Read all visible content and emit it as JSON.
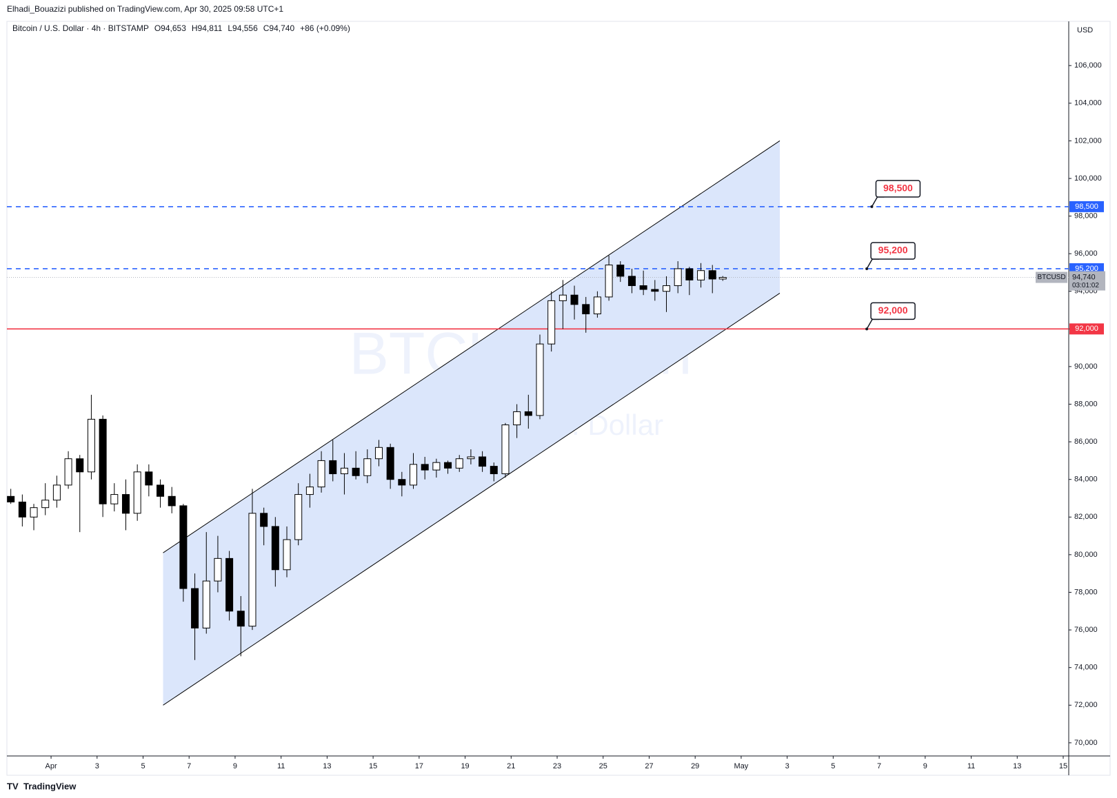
{
  "header": {
    "publisher": "Elhadi_Bouazizi published on TradingView.com, Apr 30, 2025 09:58 UTC+1",
    "brand": "TradingView"
  },
  "chart_data": {
    "type": "candlestick",
    "legend": {
      "symbol": "Bitcoin / U.S. Dollar · 4h · BITSTAMP",
      "fields": [
        {
          "key": "O",
          "value": "94,653"
        },
        {
          "key": "H",
          "value": "94,811"
        },
        {
          "key": "L",
          "value": "94,556"
        },
        {
          "key": "C",
          "value": "94,740"
        }
      ],
      "change": "+86 (+0.09%)"
    },
    "watermark": {
      "title": "BTCUSD, 4h",
      "subtitle": "Bitcoin / U.S. Dollar"
    },
    "currency": "USD",
    "up_color": "#ffffff",
    "down_color": "#000000",
    "wick_color": "#000000",
    "x": [
      -0.75,
      -0.25,
      0.25,
      0.75,
      1.25,
      1.75,
      2.25,
      2.75,
      3.25,
      3.75,
      4.25,
      4.75,
      5.25,
      5.75,
      6.25,
      6.75,
      7.25,
      7.75,
      8.25,
      8.75,
      9.25,
      9.75,
      10.25,
      10.75,
      11.25,
      11.75,
      12.25,
      12.75,
      13.25,
      13.75,
      14.25,
      14.75,
      15.25,
      15.75,
      16.25,
      16.75,
      17.25,
      17.75,
      18.25,
      18.75,
      19.25,
      19.75,
      20.25,
      20.75,
      21.25,
      21.75,
      22.25,
      22.75,
      23.25,
      23.75,
      24.25,
      24.75,
      25.25,
      25.75,
      26.25,
      26.75,
      27.25,
      27.75,
      28.25,
      28.75,
      29.25,
      29.75,
      30.2
    ],
    "open": [
      83100,
      82800,
      82000,
      82500,
      82900,
      83700,
      85100,
      84400,
      87200,
      82700,
      83200,
      82200,
      84400,
      83700,
      83100,
      82600,
      78200,
      76100,
      78600,
      79800,
      77000,
      76200,
      82200,
      81500,
      79200,
      80800,
      83200,
      83600,
      85000,
      84300,
      84600,
      84200,
      85100,
      85700,
      84000,
      83700,
      84800,
      84500,
      84900,
      84600,
      85100,
      85200,
      84700,
      84300,
      86900,
      87600,
      87400,
      91200,
      93500,
      93800,
      93300,
      92800,
      93700,
      95400,
      94800,
      94300,
      94100,
      94000,
      94300,
      95200,
      94600,
      95100,
      94653
    ],
    "high": [
      83500,
      83200,
      82700,
      83800,
      84200,
      85500,
      85300,
      88500,
      87400,
      83800,
      84000,
      84800,
      84800,
      84000,
      83600,
      82700,
      79000,
      81200,
      81000,
      80200,
      77800,
      83500,
      82500,
      82000,
      81500,
      83800,
      84300,
      85500,
      86100,
      85400,
      85500,
      85600,
      86100,
      85900,
      84400,
      85400,
      85200,
      85100,
      85000,
      85300,
      85600,
      85500,
      84900,
      87000,
      88000,
      88500,
      91700,
      94000,
      94600,
      94300,
      93700,
      94000,
      95900,
      95600,
      95200,
      95100,
      94600,
      94800,
      95600,
      95300,
      95500,
      95400,
      94811
    ],
    "low": [
      82700,
      81500,
      81300,
      82100,
      82500,
      83500,
      81200,
      84000,
      82000,
      82300,
      81300,
      81800,
      83100,
      82500,
      82200,
      77500,
      74400,
      75800,
      78000,
      76500,
      74600,
      76000,
      80500,
      78300,
      78800,
      80500,
      82500,
      83300,
      83900,
      83200,
      84000,
      83800,
      84700,
      83500,
      83100,
      83500,
      84000,
      84100,
      84300,
      84400,
      84800,
      84400,
      83900,
      84100,
      86200,
      86700,
      87200,
      90800,
      92000,
      92500,
      91800,
      92600,
      93500,
      94500,
      93900,
      93800,
      93500,
      92900,
      93900,
      93800,
      94200,
      93900,
      94556
    ],
    "close": [
      82800,
      82000,
      82500,
      82900,
      83700,
      85100,
      84400,
      87200,
      82700,
      83200,
      82200,
      84400,
      83700,
      83100,
      82600,
      78200,
      76100,
      78600,
      79800,
      77000,
      76200,
      82200,
      81500,
      79200,
      80800,
      83200,
      83600,
      85000,
      84300,
      84600,
      84200,
      85100,
      85700,
      84000,
      83700,
      84800,
      84500,
      84900,
      84600,
      85100,
      85200,
      84700,
      84300,
      86900,
      87600,
      87400,
      91200,
      93500,
      93800,
      93300,
      92800,
      93700,
      95400,
      94800,
      94300,
      94100,
      94000,
      94300,
      95200,
      94600,
      95100,
      94653,
      94740
    ],
    "xlim": [
      -0.92,
      45.24
    ],
    "xticks": [
      {
        "value": 1,
        "label": "Apr"
      },
      3,
      5,
      7,
      9,
      11,
      13,
      15,
      17,
      19,
      21,
      23,
      25,
      27,
      29,
      {
        "value": 31,
        "label": "May"
      },
      {
        "value": 33,
        "label": "3"
      },
      {
        "value": 35,
        "label": "5"
      },
      {
        "value": 37,
        "label": "7"
      },
      {
        "value": 39,
        "label": "9"
      },
      {
        "value": 41,
        "label": "11"
      },
      {
        "value": 43,
        "label": "13"
      },
      {
        "value": 45,
        "label": "15"
      }
    ],
    "ylim": [
      69300,
      108350
    ],
    "yticks": [
      {
        "value": 70000,
        "label": "70,000"
      },
      {
        "value": 72000,
        "label": "72,000"
      },
      {
        "value": 74000,
        "label": "74,000"
      },
      {
        "value": 76000,
        "label": "76,000"
      },
      {
        "value": 78000,
        "label": "78,000"
      },
      {
        "value": 80000,
        "label": "80,000"
      },
      {
        "value": 82000,
        "label": "82,000"
      },
      {
        "value": 84000,
        "label": "84,000"
      },
      {
        "value": 86000,
        "label": "86,000"
      },
      {
        "value": 88000,
        "label": "88,000"
      },
      {
        "value": 90000,
        "label": "90,000"
      },
      {
        "value": 92000,
        "label": "92,000"
      },
      {
        "value": 94000,
        "label": "94,000"
      },
      {
        "value": 96000,
        "label": "96,000"
      },
      {
        "value": 98000,
        "label": "98,000"
      },
      {
        "value": 100000,
        "label": "100,000"
      },
      {
        "value": 102000,
        "label": "102,000"
      },
      {
        "value": 104000,
        "label": "104,000"
      },
      {
        "value": 106000,
        "label": "106,000"
      }
    ],
    "channel": {
      "fill": "#dbe6fb",
      "stroke": "#000000",
      "upper": [
        [
          5.87,
          80100
        ],
        [
          32.68,
          102000
        ]
      ],
      "lower": [
        [
          5.87,
          72000
        ],
        [
          32.68,
          93900
        ]
      ]
    },
    "levels": [
      {
        "value": 98500,
        "label": "98,500",
        "color": "#2962ff",
        "dashed": true,
        "callout_x": 36.68
      },
      {
        "value": 95200,
        "label": "95,200",
        "color": "#2962ff",
        "dashed": true,
        "callout_x": 36.46
      },
      {
        "value": 92000,
        "label": "92,000",
        "color": "#f23645",
        "dashed": false,
        "callout_x": 36.46
      }
    ],
    "last_price": {
      "value": 94740,
      "value_label": "94,740",
      "symbol": "BTCUSD",
      "countdown": "03:01:02"
    }
  }
}
